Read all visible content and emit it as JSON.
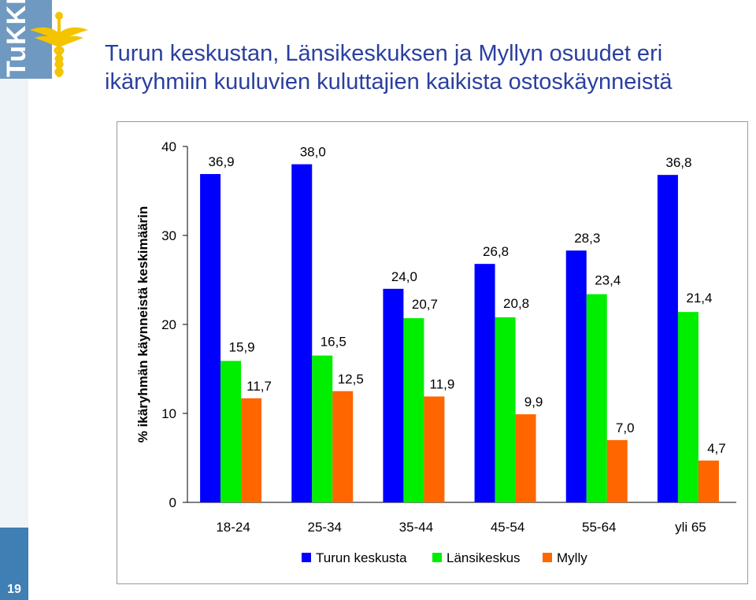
{
  "slide": {
    "title_line1": "Turun keskustan, Länsikeskuksen ja Myllyn osuudet eri",
    "title_line2": "ikäryhmiin kuuluvien kuluttajien kaikista ostoskäynneistä",
    "page_number": "19",
    "logo_text": "TuKKK"
  },
  "chart_data": {
    "type": "bar",
    "ylabel": "% ikäryhmän käynneistä keskimäärin",
    "xlabel": "",
    "ylim": [
      0,
      40
    ],
    "yticks": [
      "0",
      "10",
      "20",
      "30",
      "40"
    ],
    "categories": [
      "18-24",
      "25-34",
      "35-44",
      "45-54",
      "55-64",
      "yli 65"
    ],
    "series": [
      {
        "name": "Turun keskusta",
        "color": "#0000ff",
        "values": [
          36.9,
          38.0,
          24.0,
          26.8,
          28.3,
          36.8
        ],
        "labels": [
          "36,9",
          "38,0",
          "24,0",
          "26,8",
          "28,3",
          "36,8"
        ]
      },
      {
        "name": "Länsikeskus",
        "color": "#00ee00",
        "values": [
          15.9,
          16.5,
          20.7,
          20.8,
          23.4,
          21.4
        ],
        "labels": [
          "15,9",
          "16,5",
          "20,7",
          "20,8",
          "23,4",
          "21,4"
        ]
      },
      {
        "name": "Mylly",
        "color": "#ff6600",
        "values": [
          11.7,
          12.5,
          11.9,
          9.9,
          7.0,
          4.7
        ],
        "labels": [
          "11,7",
          "12,5",
          "11,9",
          "9,9",
          "7,0",
          "4,7"
        ]
      }
    ],
    "grid": false,
    "legend": "bottom"
  }
}
